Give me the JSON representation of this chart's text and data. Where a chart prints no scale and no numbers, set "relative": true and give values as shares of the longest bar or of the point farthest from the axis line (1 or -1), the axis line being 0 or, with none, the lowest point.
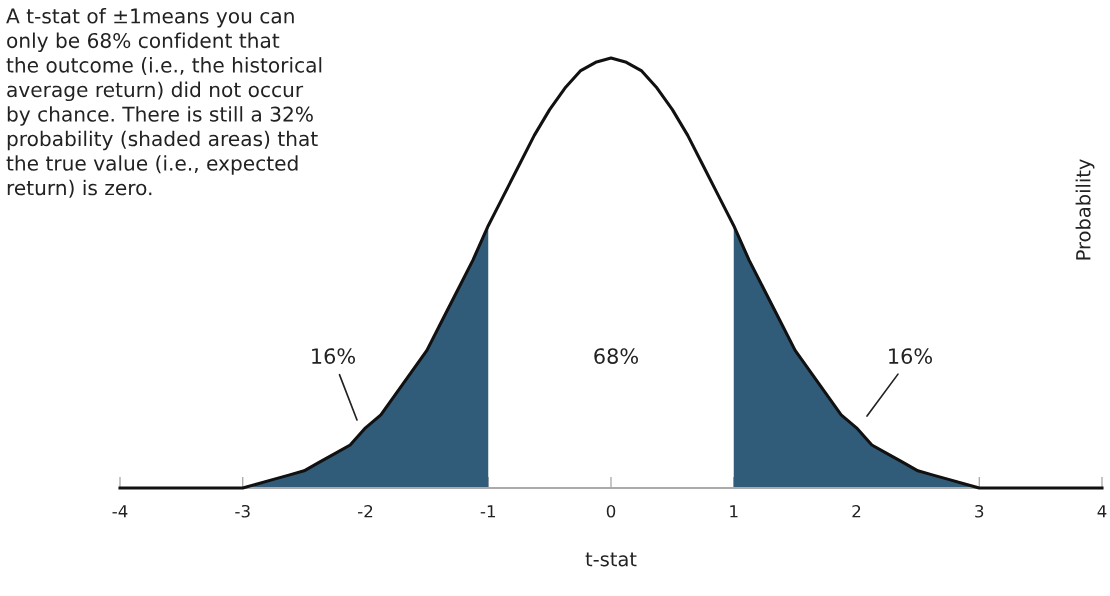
{
  "chart_data": {
    "type": "line",
    "relative": true,
    "xlabel": "t-stat",
    "ylabel": "Probability",
    "tick_labels": "x",
    "grid": false,
    "marker": "none",
    "line_style": "solid",
    "xlim": [
      -4,
      4
    ],
    "xticks": [
      {
        "value": -4,
        "label": "-4"
      },
      {
        "value": -3,
        "label": "-3"
      },
      {
        "value": -2,
        "label": "-2"
      },
      {
        "value": -1,
        "label": "-1"
      },
      0,
      1,
      2,
      3,
      4
    ],
    "series": [
      {
        "color": "#111111",
        "x": [
          -4,
          -3.5,
          -3,
          -2.875,
          -2.75,
          -2.625,
          -2.5,
          -2.375,
          -2.25,
          -2.125,
          -2,
          -1.875,
          -1.75,
          -1.625,
          -1.5,
          -1.375,
          -1.25,
          -1.125,
          -1,
          -0.875,
          -0.75,
          -0.625,
          -0.5,
          -0.375,
          -0.25,
          -0.125,
          0,
          0.125,
          0.25,
          0.375,
          0.5,
          0.625,
          0.75,
          0.875,
          1,
          1.125,
          1.25,
          1.375,
          1.5,
          1.625,
          1.75,
          1.875,
          2,
          2.125,
          2.25,
          2.375,
          2.5,
          2.625,
          2.75,
          2.875,
          3,
          3.5,
          4
        ],
        "values": [
          0,
          0,
          0,
          0.01,
          0.02,
          0.03,
          0.04,
          0.06,
          0.08,
          0.1,
          0.14,
          0.17,
          0.22,
          0.27,
          0.32,
          0.39,
          0.46,
          0.53,
          0.61,
          0.68,
          0.75,
          0.82,
          0.88,
          0.93,
          0.97,
          0.99,
          1,
          0.99,
          0.97,
          0.93,
          0.88,
          0.82,
          0.75,
          0.68,
          0.61,
          0.53,
          0.46,
          0.39,
          0.32,
          0.27,
          0.22,
          0.17,
          0.14,
          0.1,
          0.08,
          0.06,
          0.04,
          0.03,
          0.02,
          0.01,
          0,
          0,
          0
        ]
      },
      {
        "type": "area",
        "color": "#305c7a",
        "x": [
          -4,
          -3.5,
          -3,
          -2.875,
          -2.75,
          -2.625,
          -2.5,
          -2.375,
          -2.25,
          -2.125,
          -2,
          -1.875,
          -1.75,
          -1.625,
          -1.5,
          -1.375,
          -1.25,
          -1.125,
          -1
        ],
        "values": [
          0,
          0,
          0,
          0.01,
          0.02,
          0.03,
          0.04,
          0.06,
          0.08,
          0.1,
          0.14,
          0.17,
          0.22,
          0.27,
          0.32,
          0.39,
          0.46,
          0.53,
          0.61
        ]
      },
      {
        "type": "area",
        "color": "#305c7a",
        "x": [
          1,
          1.125,
          1.25,
          1.375,
          1.5,
          1.625,
          1.75,
          1.875,
          2,
          2.125,
          2.25,
          2.375,
          2.5,
          2.625,
          2.75,
          2.875,
          3,
          3.5,
          4
        ],
        "values": [
          0.61,
          0.53,
          0.46,
          0.39,
          0.32,
          0.27,
          0.22,
          0.17,
          0.14,
          0.1,
          0.08,
          0.06,
          0.04,
          0.03,
          0.02,
          0.01,
          0,
          0,
          0
        ]
      }
    ],
    "annotations": [
      "A t-stat of ±1means you can\nonly be 68% confident that\nthe outcome (i.e., the historical\naverage return) did not occur\nby chance. There is still a 32%\nprobability (shaded areas) that\nthe true value (i.e., expected\nreturn) is zero.",
      "16%",
      "68%",
      "16%"
    ]
  }
}
